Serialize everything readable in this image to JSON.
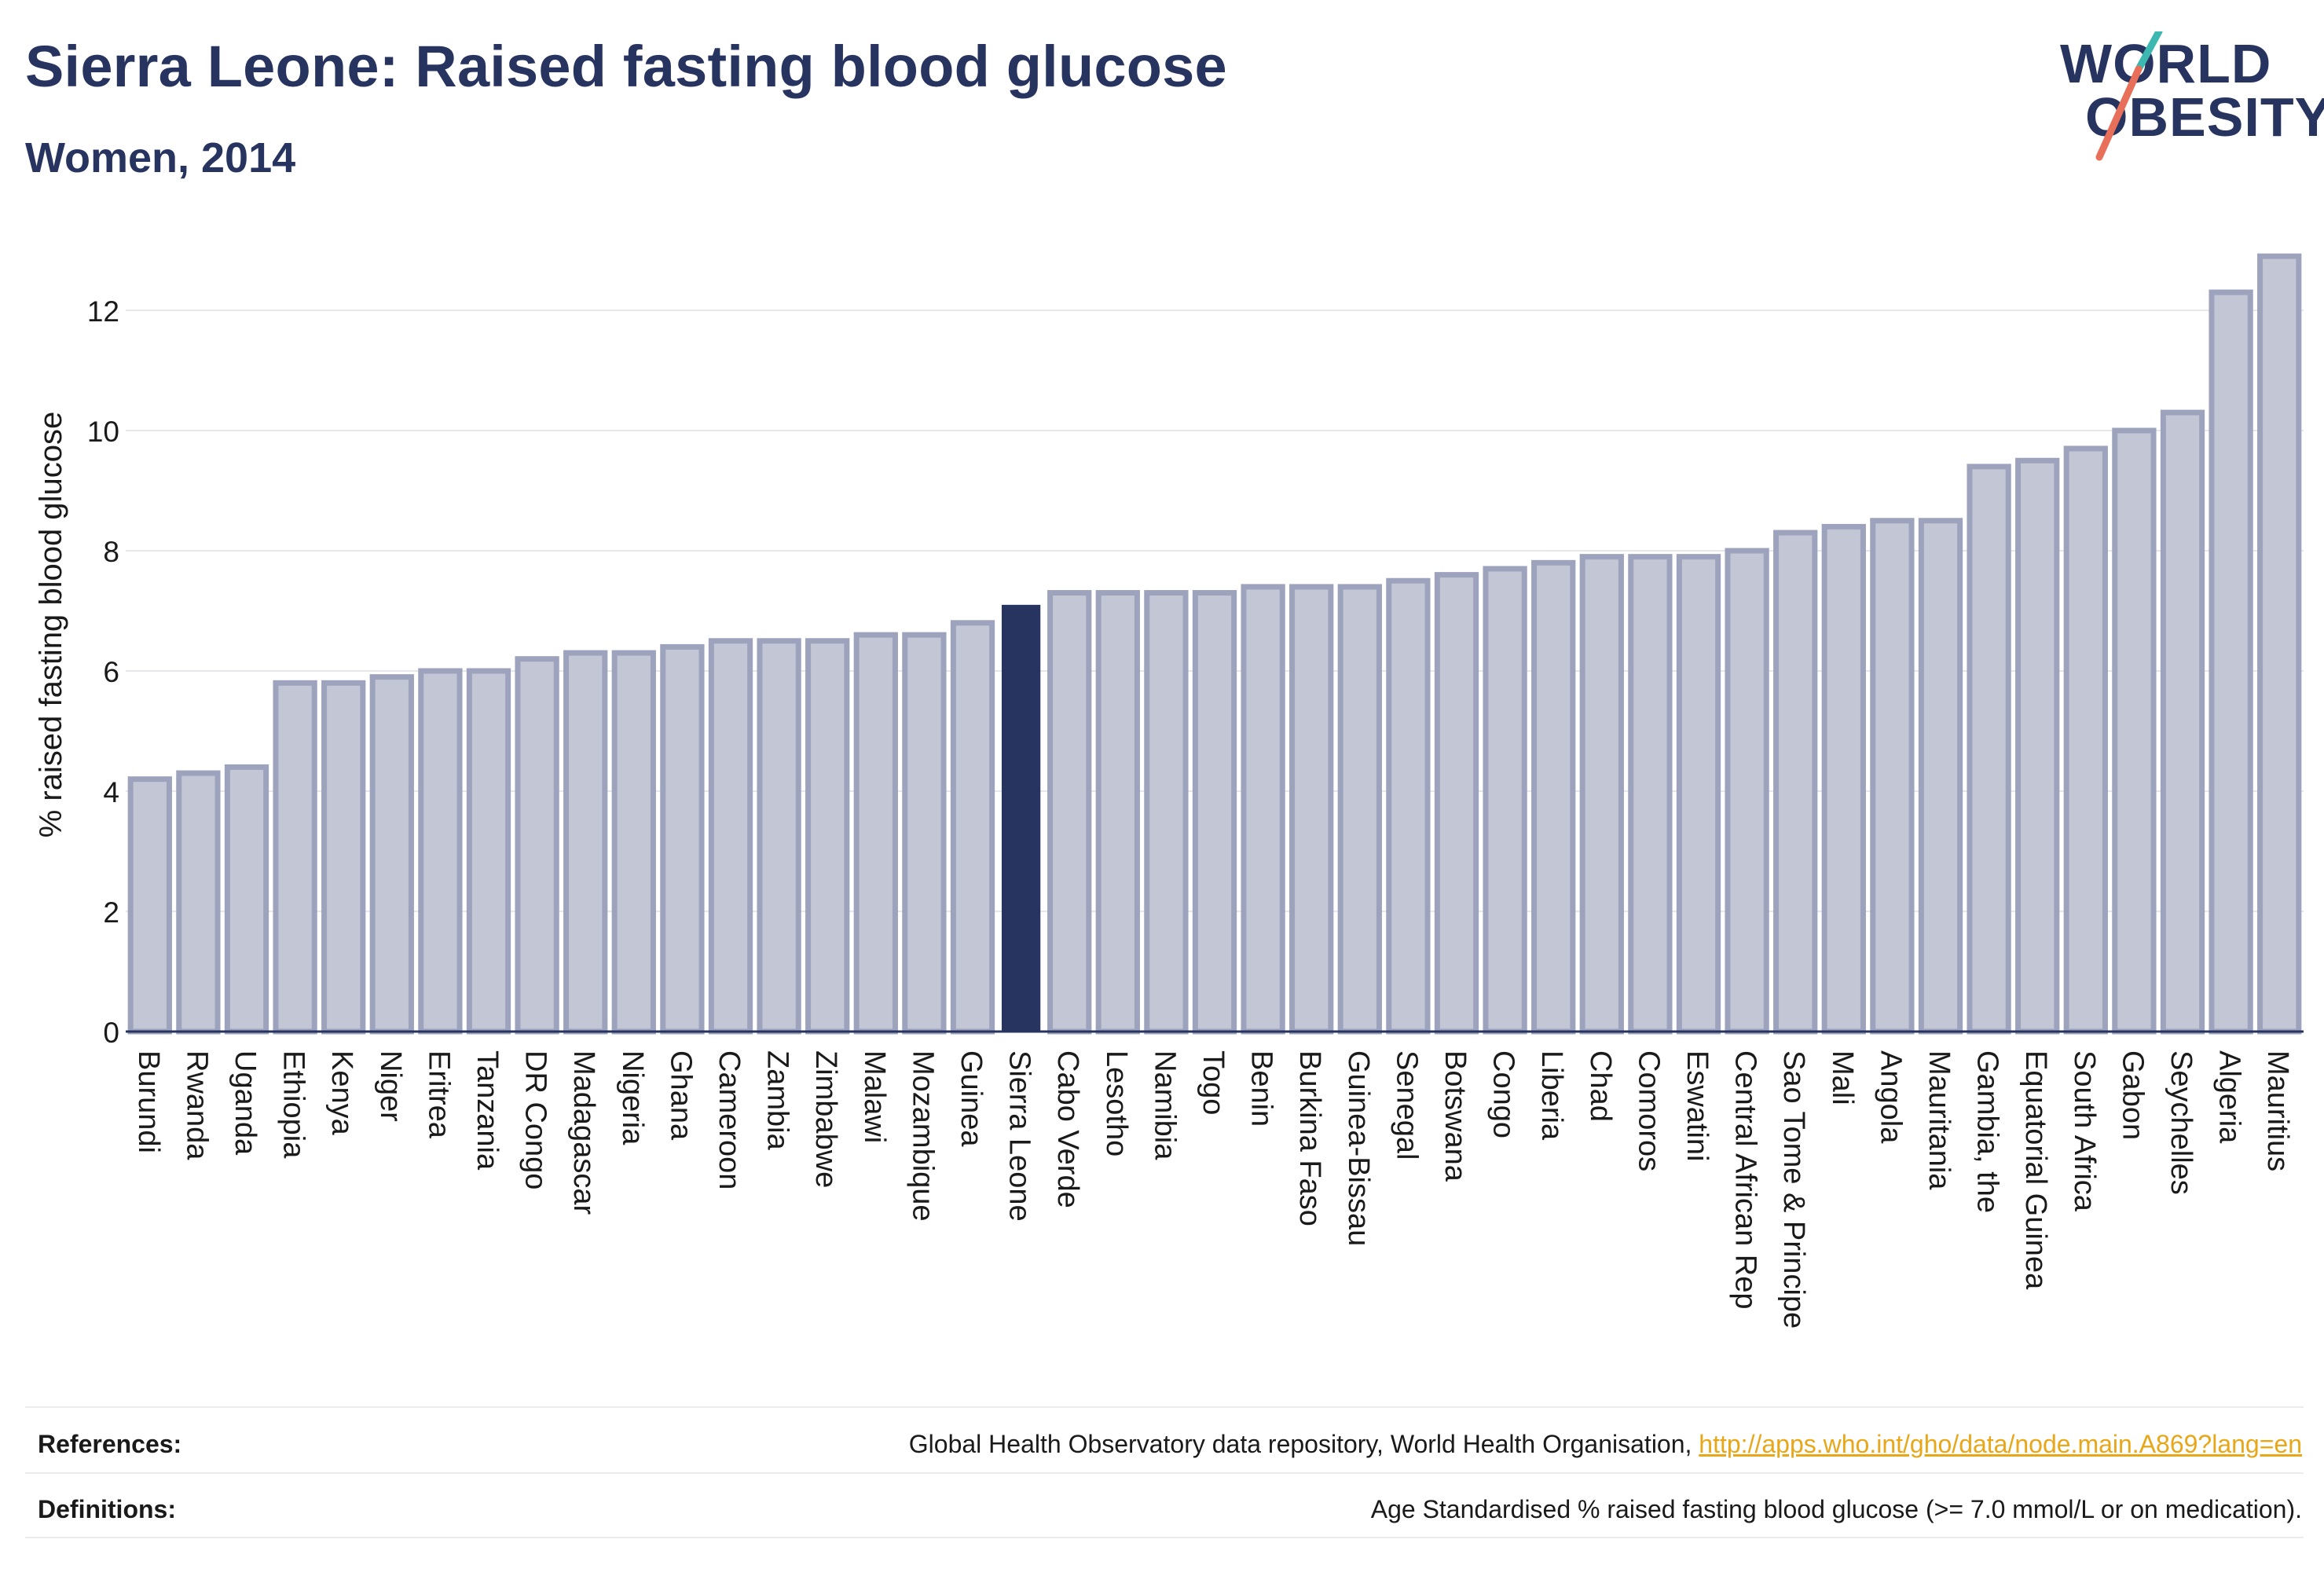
{
  "header": {
    "title": "Sierra Leone: Raised fasting blood glucose",
    "subtitle": "Women, 2014"
  },
  "logo": {
    "line1": "WORLD",
    "line2": "OBESITY"
  },
  "chart_data": {
    "type": "bar",
    "title": "Sierra Leone: Raised fasting blood glucose",
    "subtitle": "Women, 2014",
    "xlabel": "",
    "ylabel": "% raised fasting blood glucose",
    "ylim": [
      0,
      13.2
    ],
    "yticks": [
      0,
      2,
      4,
      6,
      8,
      10,
      12
    ],
    "grid": true,
    "highlight": "Sierra Leone",
    "colors": {
      "bar": "#c3c6d4",
      "bar_border": "#9ea3bd",
      "highlight": "#283460",
      "axis": "#283460",
      "grid": "#e6e6ec"
    },
    "categories": [
      "Burundi",
      "Rwanda",
      "Uganda",
      "Ethiopia",
      "Kenya",
      "Niger",
      "Eritrea",
      "Tanzania",
      "DR Congo",
      "Madagascar",
      "Nigeria",
      "Ghana",
      "Cameroon",
      "Zambia",
      "Zimbabwe",
      "Malawi",
      "Mozambique",
      "Guinea",
      "Sierra Leone",
      "Cabo Verde",
      "Lesotho",
      "Namibia",
      "Togo",
      "Benin",
      "Burkina Faso",
      "Guinea-Bissau",
      "Senegal",
      "Botswana",
      "Congo",
      "Liberia",
      "Chad",
      "Comoros",
      "Eswatini",
      "Central African Rep",
      "Sao Tome & Principe",
      "Mali",
      "Angola",
      "Mauritania",
      "Gambia, the",
      "Equatorial Guinea",
      "South Africa",
      "Gabon",
      "Seychelles",
      "Algeria",
      "Mauritius"
    ],
    "values": [
      4.2,
      4.3,
      4.4,
      5.8,
      5.8,
      5.9,
      6.0,
      6.0,
      6.2,
      6.3,
      6.3,
      6.4,
      6.5,
      6.5,
      6.5,
      6.6,
      6.6,
      6.8,
      7.1,
      7.3,
      7.3,
      7.3,
      7.3,
      7.4,
      7.4,
      7.4,
      7.5,
      7.6,
      7.7,
      7.8,
      7.9,
      7.9,
      7.9,
      8.0,
      8.3,
      8.4,
      8.5,
      8.5,
      9.4,
      9.5,
      9.7,
      10.0,
      10.3,
      12.3,
      12.9
    ]
  },
  "footer": {
    "references_label": "References:",
    "references_text": "Global Health Observatory data repository, World Health Organisation, ",
    "references_link": "http://apps.who.int/gho/data/node.main.A869?lang=en",
    "definitions_label": "Definitions:",
    "definitions_text": "Age Standardised % raised fasting blood glucose (>= 7.0 mmol/L or on medication)."
  }
}
